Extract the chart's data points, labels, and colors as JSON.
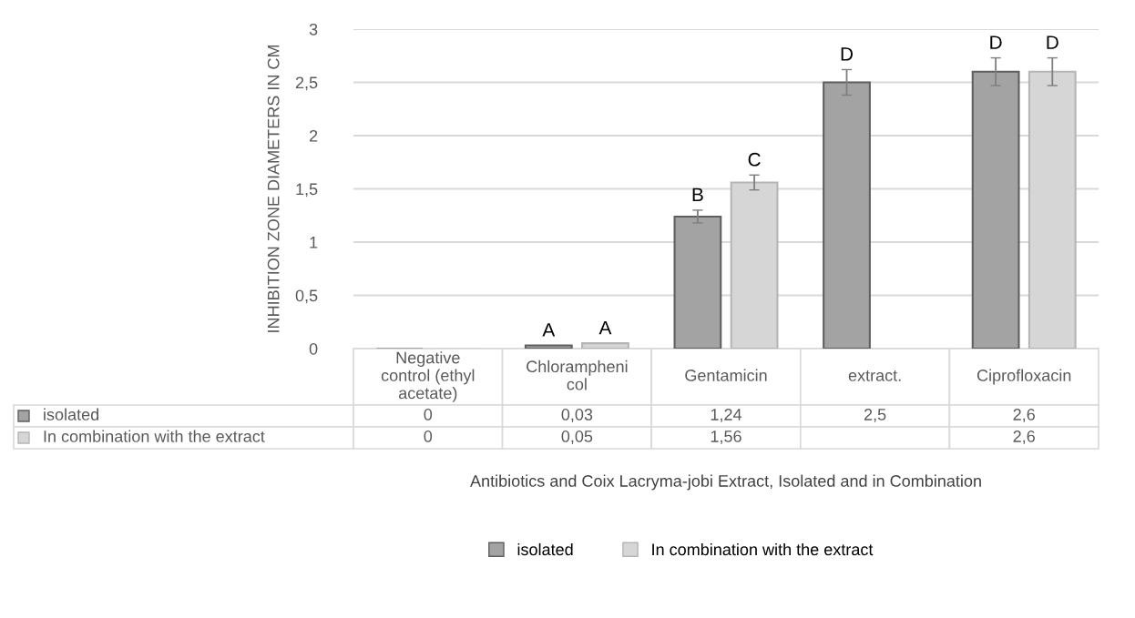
{
  "chart_data": {
    "type": "bar",
    "xlabel": "Antibiotics and Coix Lacryma-jobi Extract, Isolated and in Combination",
    "ylabel": "INHIBITION ZONE DIAMETERS IN CM",
    "categories": [
      "Negative control (ethyl acetate)",
      "Chlorampheni col",
      "Gentamicin",
      "extract.",
      "Ciprofloxacin"
    ],
    "series": [
      {
        "name": "isolated",
        "color": "#a3a3a3",
        "values": [
          0,
          0.03,
          1.24,
          2.5,
          2.6
        ],
        "errors": [
          null,
          null,
          0.06,
          0.12,
          0.13
        ],
        "value_labels": [
          "0",
          "0,03",
          "1,24",
          "2,5",
          "2,6"
        ]
      },
      {
        "name": "In combination with the extract",
        "color": "#d6d6d6",
        "values": [
          0,
          0.05,
          1.56,
          null,
          2.6
        ],
        "errors": [
          null,
          null,
          0.07,
          null,
          0.13
        ],
        "value_labels": [
          "0",
          "0,05",
          "1,56",
          null,
          "2,6"
        ]
      }
    ],
    "ylim": [
      0,
      3
    ],
    "yticks": [
      0,
      {
        "value": 0.5,
        "label": "0,5"
      },
      1,
      {
        "value": 1.5,
        "label": "1,5"
      },
      2,
      {
        "value": 2.5,
        "label": "2,5"
      },
      3
    ],
    "grid": "y",
    "legend": "bottom",
    "annotations": [
      "A",
      "A",
      "B",
      "C",
      "D",
      "D",
      "D"
    ]
  }
}
